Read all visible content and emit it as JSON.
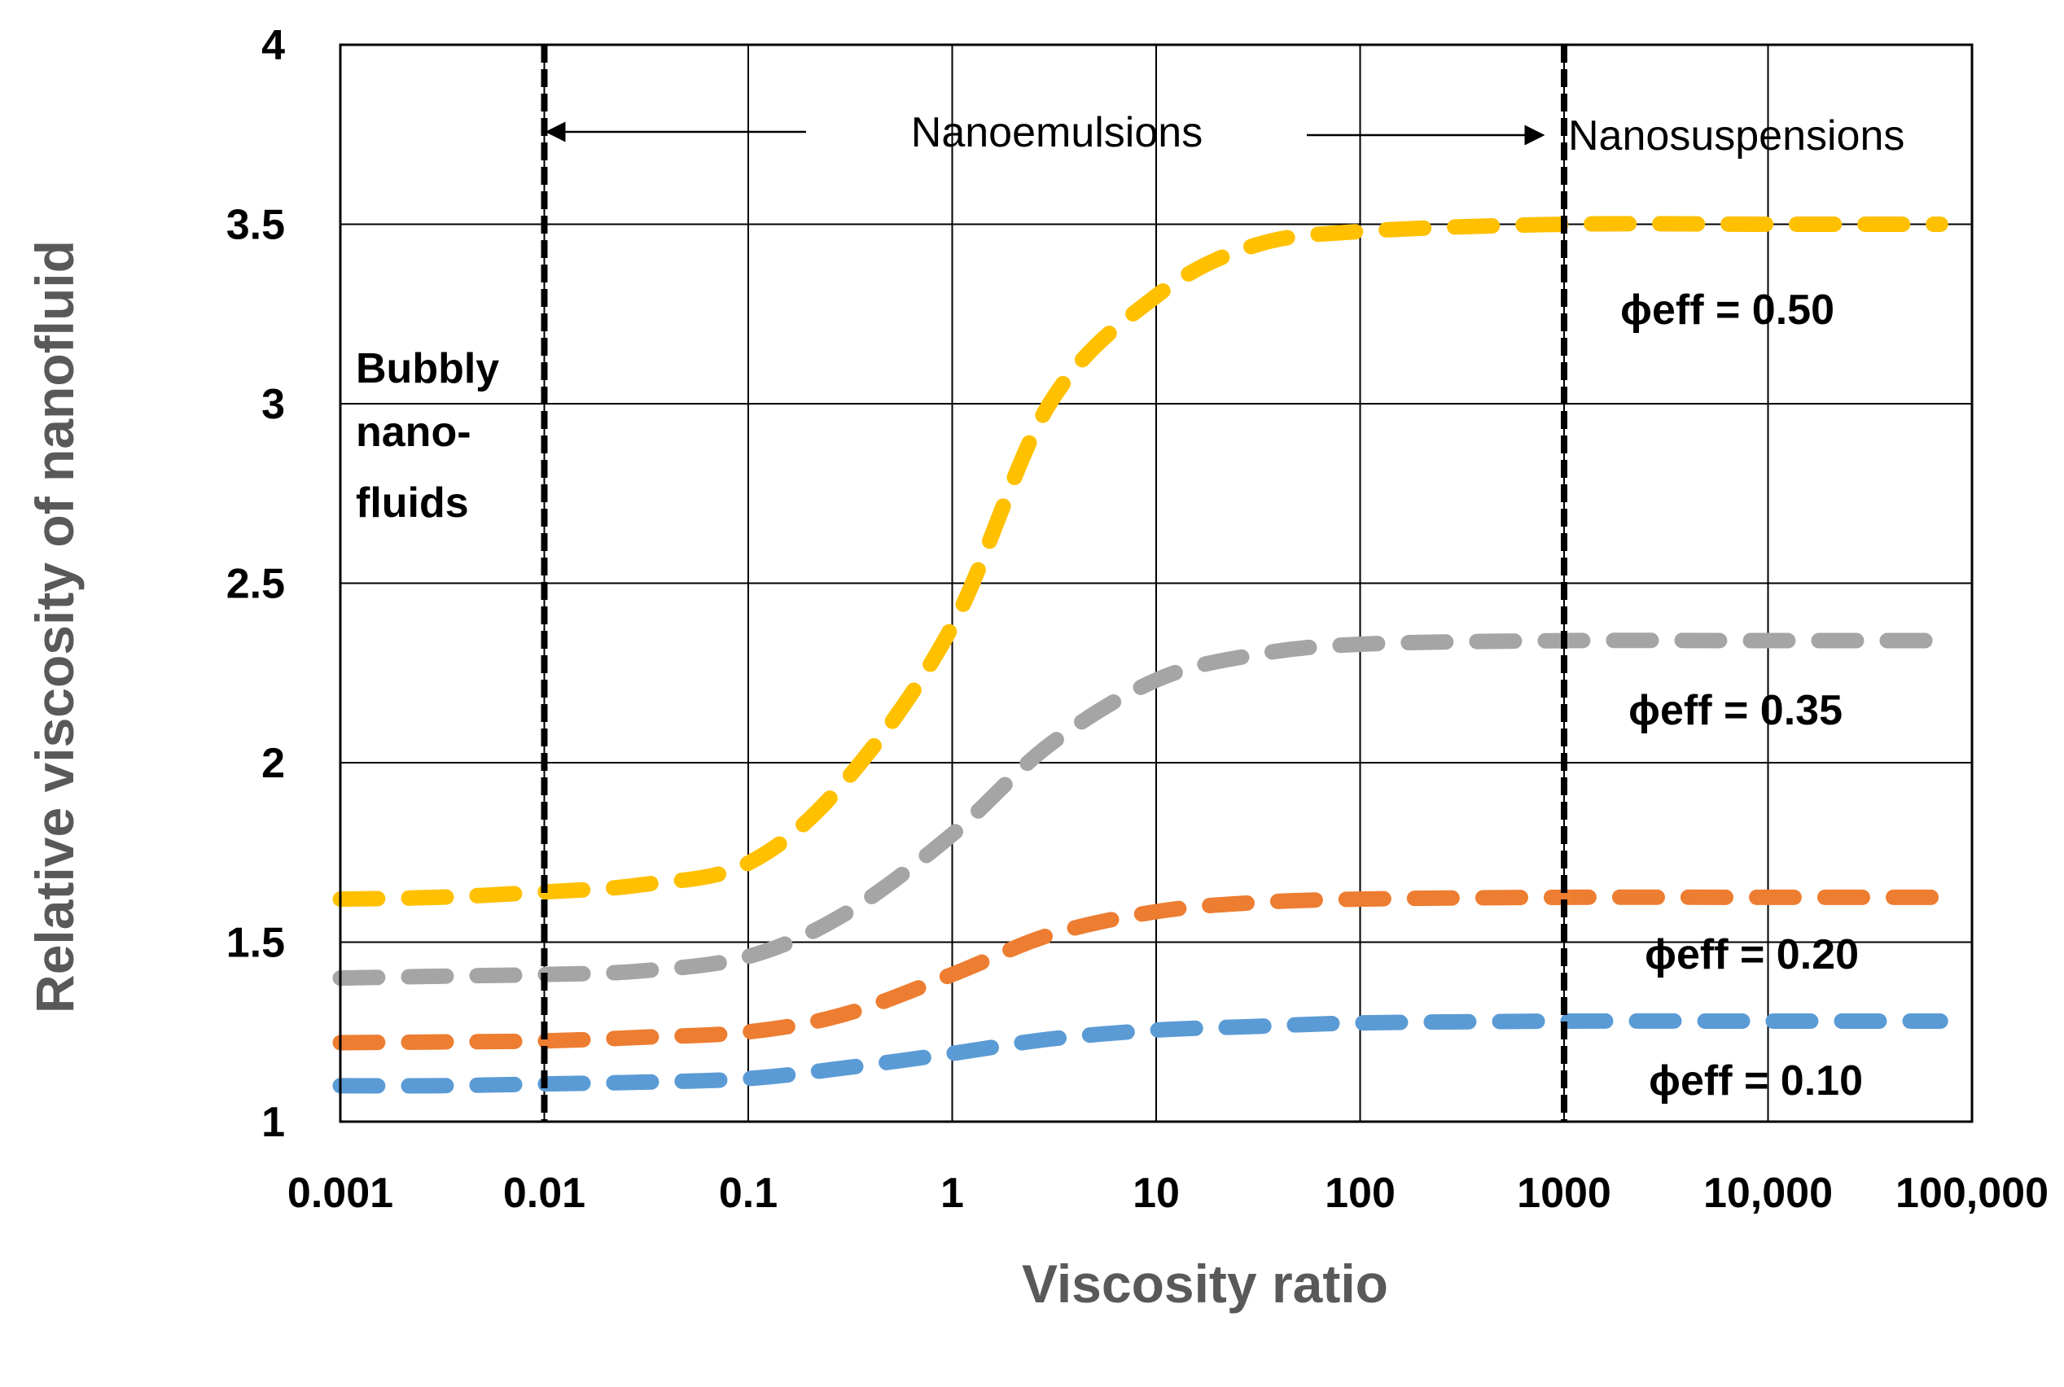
{
  "chart_data": {
    "type": "line",
    "title": "",
    "xlabel": "Viscosity ratio",
    "ylabel": "Relative viscosity of nanofluid",
    "xscale": "log",
    "xlim": [
      0.001,
      100000
    ],
    "ylim": [
      1,
      4
    ],
    "grid": true,
    "x_tick_values": [
      0.001,
      0.01,
      0.1,
      1,
      10,
      100,
      1000,
      10000,
      100000
    ],
    "x_tick_labels": [
      "0.001",
      "0.01",
      "0.1",
      "1",
      "10",
      "100",
      "1000",
      "10,000",
      "100,000"
    ],
    "y_tick_values": [
      1,
      1.5,
      2,
      2.5,
      3,
      3.5,
      4
    ],
    "y_tick_labels": [
      "1",
      "1.5",
      "2",
      "2.5",
      "3",
      "3.5",
      "4"
    ],
    "x": [
      0.001,
      0.003,
      0.01,
      0.03,
      0.1,
      0.3,
      1,
      3,
      10,
      30,
      100,
      1000,
      10000,
      70000
    ],
    "series": [
      {
        "name": "ϕeff = 0.50",
        "color": "#FFC000",
        "values": [
          1.62,
          1.625,
          1.64,
          1.66,
          1.72,
          1.95,
          2.38,
          3.0,
          3.3,
          3.44,
          3.48,
          3.5,
          3.5,
          3.5
        ]
      },
      {
        "name": "ϕeff = 0.35",
        "color": "#A5A5A5",
        "values": [
          1.4,
          1.405,
          1.41,
          1.42,
          1.46,
          1.58,
          1.8,
          2.05,
          2.23,
          2.3,
          2.33,
          2.34,
          2.34,
          2.34
        ]
      },
      {
        "name": "ϕeff = 0.20",
        "color": "#ED7D31",
        "values": [
          1.22,
          1.222,
          1.225,
          1.235,
          1.25,
          1.3,
          1.41,
          1.52,
          1.585,
          1.61,
          1.62,
          1.625,
          1.625,
          1.625
        ]
      },
      {
        "name": "ϕeff = 0.10",
        "color": "#5B9BD5",
        "values": [
          1.1,
          1.1,
          1.105,
          1.11,
          1.12,
          1.15,
          1.19,
          1.23,
          1.255,
          1.265,
          1.275,
          1.28,
          1.28,
          1.28
        ]
      }
    ],
    "vertical_lines": [
      0.01,
      1000
    ],
    "annotations": {
      "nanoemulsions": "Nanoemulsions",
      "nanosuspensions": "Nanosuspensions",
      "bubbly_line1": "Bubbly",
      "bubbly_line2": "nano-",
      "bubbly_line3": "fluids"
    }
  }
}
